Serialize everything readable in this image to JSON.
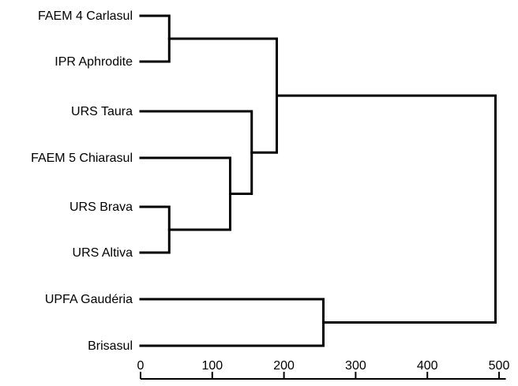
{
  "chart_data": {
    "type": "dendrogram",
    "leaves": [
      "FAEM 4 Carlasul",
      "IPR Aphrodite",
      "URS Taura",
      "FAEM 5 Chiarasul",
      "URS Brava",
      "URS Altiva",
      "UPFA Gaudéria",
      "Brisasul"
    ],
    "merges": [
      {
        "id": "m1",
        "left": "URS Brava",
        "right": "URS Altiva",
        "height": 40
      },
      {
        "id": "m2",
        "left": "FAEM 4 Carlasul",
        "right": "IPR Aphrodite",
        "height": 40
      },
      {
        "id": "m3",
        "left": "FAEM 5 Chiarasul",
        "right": "m1",
        "height": 125
      },
      {
        "id": "m4",
        "left": "URS Taura",
        "right": "m3",
        "height": 155
      },
      {
        "id": "m5",
        "left": "m2",
        "right": "m4",
        "height": 190
      },
      {
        "id": "m6",
        "left": "UPFA Gaudéria",
        "right": "Brisasul",
        "height": 255
      },
      {
        "id": "m7",
        "left": "m5",
        "right": "m6",
        "height": 495
      }
    ],
    "axis": {
      "ticks": [
        0,
        100,
        200,
        300,
        400,
        500
      ],
      "tick_labels": [
        "0",
        "100",
        "200",
        "300",
        "400",
        "500"
      ],
      "range": [
        0,
        505
      ]
    }
  }
}
